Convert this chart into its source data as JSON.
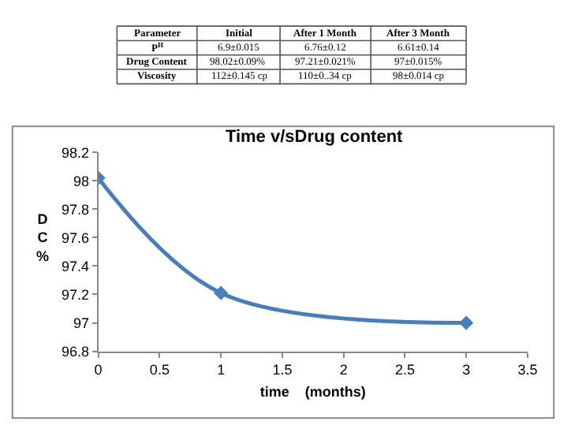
{
  "chart_data": {
    "type": "line",
    "title": "Time v/sDrug content",
    "xlabel": "time    (months)",
    "ylabel": "D C %",
    "x": [
      0,
      1,
      3
    ],
    "series": [
      {
        "color": "#4a7ebb",
        "values": [
          98.02,
          97.21,
          97.0
        ]
      }
    ],
    "xlim": [
      0,
      3.5
    ],
    "xticks": [
      0,
      0.5,
      1,
      1.5,
      2,
      2.5,
      3,
      3.5
    ],
    "ylim": [
      96.8,
      98.2
    ],
    "yticks": [
      96.8,
      97,
      97.2,
      97.4,
      97.6,
      97.8,
      98,
      98.2
    ],
    "grid": false,
    "marker": "diamond",
    "line_style": "solid",
    "annotations": [
      "Parameter",
      "Initial",
      "After 1 Month",
      "After 3 Month",
      "P$^{H}$",
      "6.9±0.015",
      "6.76±0.12",
      "6.61±0.14",
      "Drug Content",
      "98.02±0.09%",
      "97.21±0.021%",
      "97±0.015%",
      "Viscosity",
      "112±0.145 cp",
      "110±0..34 cp",
      "98±0.014 cp"
    ]
  }
}
